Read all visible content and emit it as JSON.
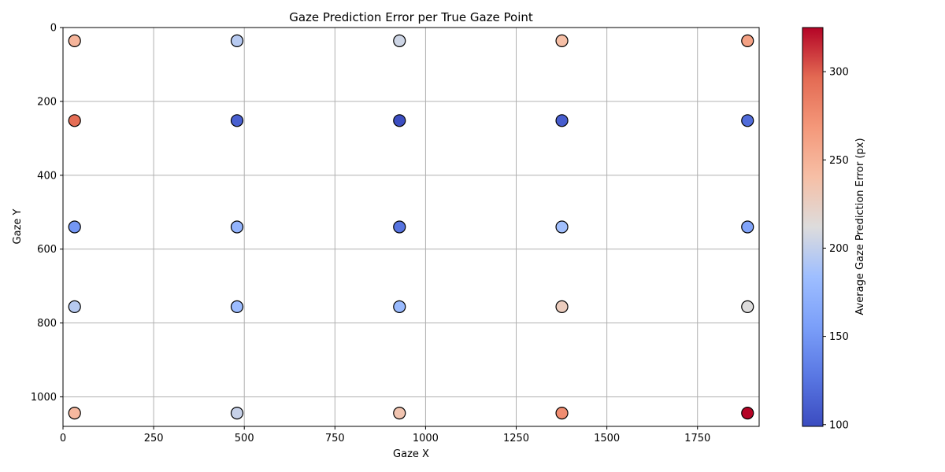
{
  "chart_data": {
    "type": "scatter",
    "title": "Gaze Prediction Error per True Gaze Point",
    "xlabel": "Gaze X",
    "ylabel": "Gaze Y",
    "xlim": [
      0,
      1920
    ],
    "ylim": [
      1080,
      0
    ],
    "y_inverted": true,
    "grid": true,
    "colormap": "coolwarm",
    "x_ticks": [
      0,
      250,
      500,
      750,
      1000,
      1250,
      1500,
      1750
    ],
    "y_ticks": [
      0,
      200,
      400,
      600,
      800,
      1000
    ],
    "colorbar": {
      "label": "Average Gaze Prediction Error (px)",
      "range": [
        99,
        325
      ],
      "ticks": [
        100,
        150,
        200,
        250,
        300
      ]
    },
    "points": [
      {
        "x": 32,
        "y": 36,
        "error": 248
      },
      {
        "x": 480,
        "y": 36,
        "error": 195
      },
      {
        "x": 928,
        "y": 36,
        "error": 205
      },
      {
        "x": 1376,
        "y": 36,
        "error": 240
      },
      {
        "x": 1888,
        "y": 36,
        "error": 262
      },
      {
        "x": 32,
        "y": 252,
        "error": 295
      },
      {
        "x": 480,
        "y": 252,
        "error": 112
      },
      {
        "x": 928,
        "y": 252,
        "error": 100
      },
      {
        "x": 1376,
        "y": 252,
        "error": 110
      },
      {
        "x": 1888,
        "y": 252,
        "error": 120
      },
      {
        "x": 32,
        "y": 540,
        "error": 150
      },
      {
        "x": 480,
        "y": 540,
        "error": 175
      },
      {
        "x": 928,
        "y": 540,
        "error": 125
      },
      {
        "x": 1376,
        "y": 540,
        "error": 185
      },
      {
        "x": 1888,
        "y": 540,
        "error": 160
      },
      {
        "x": 32,
        "y": 756,
        "error": 195
      },
      {
        "x": 480,
        "y": 756,
        "error": 182
      },
      {
        "x": 928,
        "y": 756,
        "error": 180
      },
      {
        "x": 1376,
        "y": 756,
        "error": 228
      },
      {
        "x": 1888,
        "y": 756,
        "error": 212
      },
      {
        "x": 32,
        "y": 1044,
        "error": 245
      },
      {
        "x": 480,
        "y": 1044,
        "error": 202
      },
      {
        "x": 928,
        "y": 1044,
        "error": 235
      },
      {
        "x": 1376,
        "y": 1044,
        "error": 275
      },
      {
        "x": 1888,
        "y": 1044,
        "error": 325
      }
    ]
  }
}
